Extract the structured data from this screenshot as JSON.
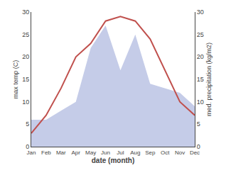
{
  "chart_data": {
    "type": "line",
    "xlabel": "date (month)",
    "ylabel": "max temp (C)",
    "y2label": "med. precipitation (kg/m2)",
    "categories": [
      "Jan",
      "Feb",
      "Mar",
      "Apr",
      "May",
      "Jun",
      "Jul",
      "Aug",
      "Sep",
      "Oct",
      "Nov",
      "Dec"
    ],
    "series": [
      {
        "type": "area",
        "color": "#c5cce8",
        "axis": "y2",
        "values": [
          6,
          6,
          8,
          10,
          22,
          27,
          17,
          25,
          14,
          13,
          12,
          9
        ]
      },
      {
        "type": "line",
        "color": "#c0504d",
        "values": [
          3,
          7,
          13,
          20,
          23,
          28,
          29,
          28,
          24,
          17,
          10,
          7
        ]
      }
    ],
    "ylim": [
      0,
      30
    ],
    "yticks": [
      0,
      5,
      10,
      15,
      20,
      25,
      30
    ],
    "y2lim": [
      0,
      30
    ],
    "y2ticks": [
      0,
      5,
      10,
      15,
      20,
      25,
      30
    ],
    "grid": false
  }
}
